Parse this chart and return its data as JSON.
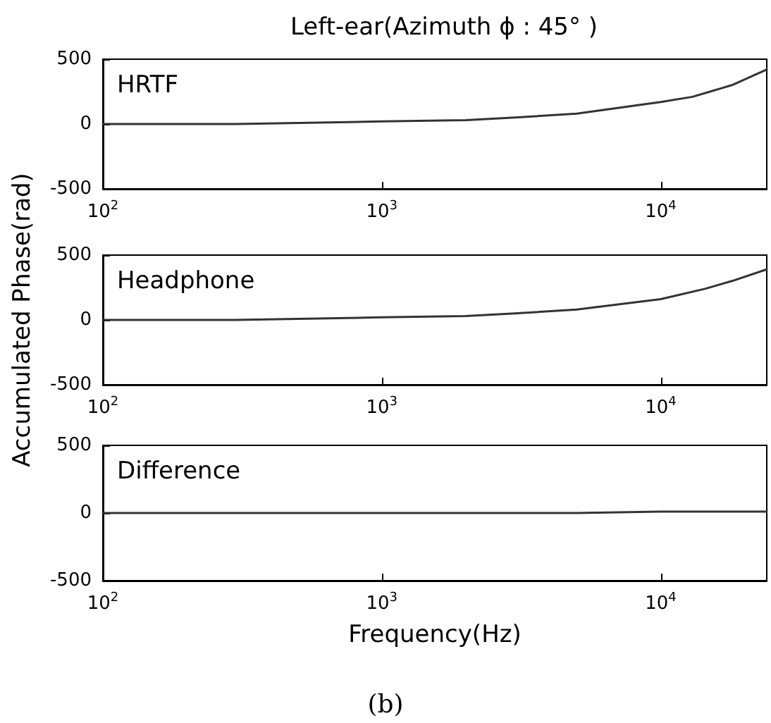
{
  "chart_data": [
    {
      "type": "line",
      "title": "Left-ear(Azimuth ϕ : 45° )",
      "annotations": [
        "HRTF"
      ],
      "log": "x",
      "xlim": [
        100,
        24000
      ],
      "xticks": [
        {
          "value": 100,
          "label": "10$^{2}$"
        },
        {
          "value": 1000,
          "label": "10$^{3}$"
        },
        {
          "value": 10000,
          "label": "10$^{4}$"
        }
      ],
      "ylim": [
        -500,
        500
      ],
      "yticks": [
        -500,
        0,
        500
      ],
      "marker": "none",
      "line_style": "solid",
      "x": [
        100,
        300,
        1000,
        2000,
        3000,
        5000,
        10000,
        13000,
        18000,
        24000
      ],
      "series": [
        {
          "color": "#333333",
          "values": [
            0,
            0,
            20,
            30,
            50,
            80,
            170,
            210,
            300,
            420
          ]
        }
      ]
    },
    {
      "type": "line",
      "annotations": [
        "Headphone"
      ],
      "ylabel": "Accumulated Phase(rad)",
      "log": "x",
      "xlim": [
        100,
        24000
      ],
      "xticks": [
        {
          "value": 100,
          "label": "10$^{2}$"
        },
        {
          "value": 1000,
          "label": "10$^{3}$"
        },
        {
          "value": 10000,
          "label": "10$^{4}$"
        }
      ],
      "ylim": [
        -500,
        500
      ],
      "yticks": [
        -500,
        0,
        500
      ],
      "marker": "none",
      "line_style": "solid",
      "x": [
        100,
        300,
        1000,
        2000,
        3000,
        5000,
        10000,
        14400,
        18000,
        24000
      ],
      "series": [
        {
          "color": "#333333",
          "values": [
            0,
            0,
            20,
            30,
            50,
            80,
            160,
            240,
            300,
            390
          ]
        }
      ]
    },
    {
      "type": "line",
      "annotations": [
        "Difference",
        "(b)"
      ],
      "xlabel": "Frequency(Hz)",
      "log": "x",
      "xlim": [
        100,
        24000
      ],
      "xticks": [
        {
          "value": 100,
          "label": "10$^{2}$"
        },
        {
          "value": 1000,
          "label": "10$^{3}$"
        },
        {
          "value": 10000,
          "label": "10$^{4}$"
        }
      ],
      "ylim": [
        -500,
        500
      ],
      "yticks": [
        -500,
        0,
        500
      ],
      "marker": "none",
      "line_style": "solid",
      "x": [
        100,
        1000,
        5000,
        10000,
        24000
      ],
      "series": [
        {
          "color": "#333333",
          "values": [
            0,
            0,
            0,
            10,
            10
          ]
        }
      ]
    }
  ]
}
